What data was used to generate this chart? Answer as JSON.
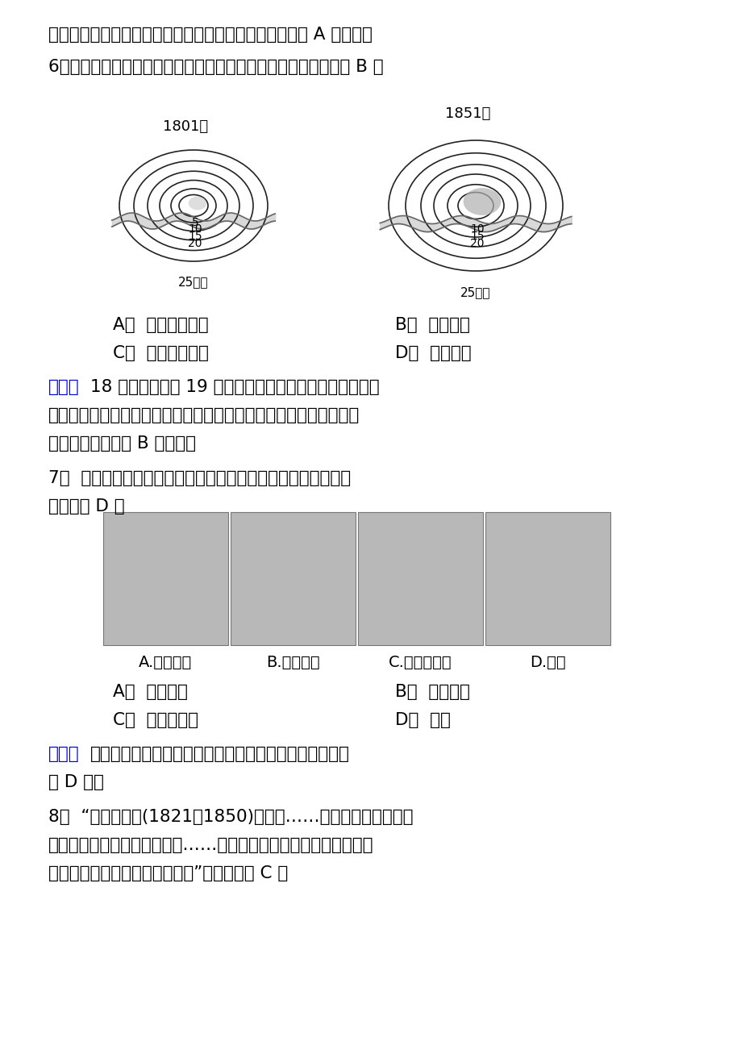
{
  "background_color": "#ffffff",
  "line1": "在创造专利上的特权，为工业革命提供了有利的环境，故 A 项正确。",
  "line2": "6．下图为伦敦城市地域的扩展示意图。这一变化出现的原因是（ B ）",
  "q6_optA": "A．  早期殖民扩张",
  "q6_optB": "B．  工业革命",
  "q6_optC": "C．  贸易中心转移",
  "q6_optD": "D．  阶级对立",
  "jiexi1_label": "解析：",
  "jiexi1_a": "18 世纪中后期到 19 世纪上华期英国开展了工业革命，瓦",
  "jiexi1_b": "特改良蒸汽机克服了自然条件的限制，工厂逐渐集中到城市，促使城",
  "jiexi1_c": "市地域的扩大，故 B 项正确。",
  "q7_line1": "7．  工业革命的核心是动力，下列体现第二次工业革命后动力变",
  "q7_line2": "化的是（ D ）",
  "img_caption": "A.蒸汽机车     B.多桡帆船  C.珍妈纺纱机    D.汽车",
  "q7_optA": "A．  蒸汽机车",
  "q7_optB": "B．  多桡帆船",
  "q7_optC": "C．  珍妈纺纱机",
  "q7_optD": "D．  汽车",
  "jiexi2_label": "解析：",
  "jiexi2_a": "汽车是第二次工业革命的产物，借助的动力是内燃机，故",
  "jiexi2_b": "选 D 项。",
  "q8_line1": "8．  “自道光年间(1821～1850)，西人……操贸易之权，逐锥刀",
  "q8_line2": "之利，民间生计，皆为其所夺……自洋布洋纱入口，土布销场遂滞，",
  "q8_line3": "纺绩稀少，机轴之声几欲断矣。”由此可见（ C ）",
  "diag1_label": "1801年",
  "diag2_label": "1851年",
  "bottom_label": "25千米"
}
